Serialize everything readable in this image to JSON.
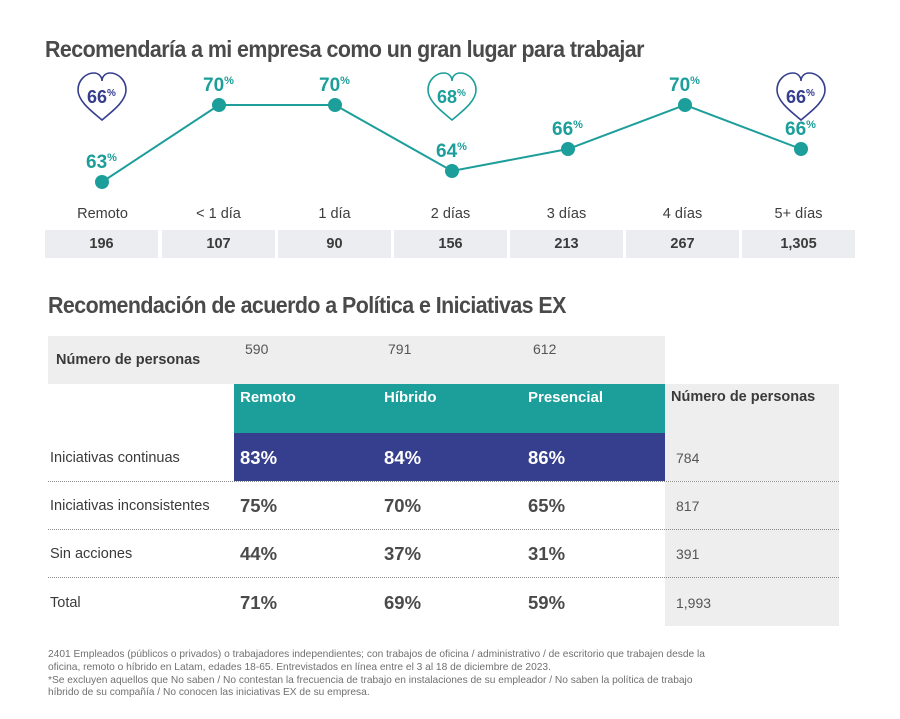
{
  "chart_data": {
    "type": "line",
    "title": "Recomendaría a mi empresa como un gran lugar para trabajar",
    "categories": [
      "Remoto",
      "< 1 día",
      "1 día",
      "2 días",
      "3 días",
      "4 días",
      "5+ días"
    ],
    "values": [
      63,
      70,
      70,
      64,
      66,
      70,
      66
    ],
    "value_labels": [
      "63%",
      "70%",
      "70%",
      "64%",
      "66%",
      "70%",
      "66%"
    ],
    "sample_sizes": [
      "196",
      "107",
      "90",
      "156",
      "213",
      "267",
      "1,305"
    ],
    "group_badges": [
      {
        "label": "66%",
        "color": "#363e8e"
      },
      {
        "label": "68%",
        "color": "#1c9e9a"
      },
      {
        "label": "66%",
        "color": "#363e8e"
      }
    ],
    "line_color": "#1c9e9a",
    "ylim": [
      60,
      72
    ]
  },
  "table": {
    "title": "Recomendación de acuerdo a Política e Iniciativas EX",
    "top_label": "Número de personas",
    "top_values": [
      "590",
      "791",
      "612"
    ],
    "columns": [
      "Remoto",
      "Híbrido",
      "Presencial"
    ],
    "right_header": "Número de personas",
    "rows": [
      {
        "label": "Iniciativas continuas",
        "values": [
          "83%",
          "84%",
          "86%"
        ],
        "n": "784"
      },
      {
        "label": "Iniciativas inconsistentes",
        "values": [
          "75%",
          "70%",
          "65%"
        ],
        "n": "817"
      },
      {
        "label": "Sin acciones",
        "values": [
          "44%",
          "37%",
          "31%"
        ],
        "n": "391"
      },
      {
        "label": "Total",
        "values": [
          "71%",
          "69%",
          "59%"
        ],
        "n": "1,993"
      }
    ],
    "header_color": "#1c9e9a",
    "highlight_color": "#363e8e"
  },
  "footnote": [
    "2401 Empleados (públicos o privados) o trabajadores independientes; con trabajos de oficina / administrativo / de escritorio que trabajen desde la",
    "oficina, remoto o híbrido en Latam, edades 18-65. Entrevistados en línea entre el 3 al 18 de diciembre de 2023.",
    "*Se excluyen aquellos que No saben / No contestan la frecuencia de trabajo en instalaciones de su empleador / No saben la política de trabajo",
    "híbrido de su compañía / No conocen las iniciativas EX de su empresa."
  ]
}
